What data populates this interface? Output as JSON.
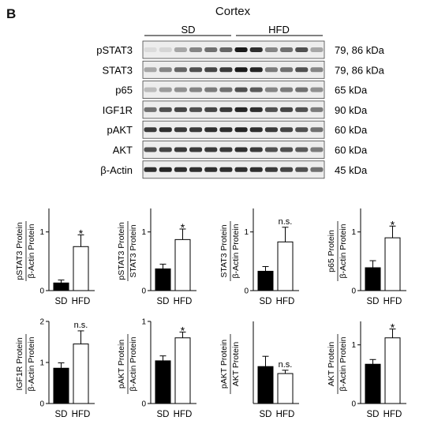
{
  "panel_label": "B",
  "blot": {
    "title": "Cortex",
    "groups": [
      "SD",
      "HFD"
    ],
    "lanes_per_group": 6,
    "rows": [
      {
        "label": "pSTAT3",
        "size": "79, 86 kDa",
        "sd": [
          0.05,
          0.08,
          0.3,
          0.45,
          0.55,
          0.6
        ],
        "hfd": [
          0.95,
          0.85,
          0.45,
          0.55,
          0.7,
          0.3
        ]
      },
      {
        "label": "STAT3",
        "size": "79, 86 kDa",
        "sd": [
          0.3,
          0.45,
          0.6,
          0.7,
          0.75,
          0.8
        ],
        "hfd": [
          0.95,
          0.9,
          0.5,
          0.55,
          0.7,
          0.45
        ]
      },
      {
        "label": "p65",
        "size": "65 kDa",
        "sd": [
          0.2,
          0.35,
          0.4,
          0.45,
          0.5,
          0.55
        ],
        "hfd": [
          0.7,
          0.65,
          0.45,
          0.5,
          0.55,
          0.4
        ]
      },
      {
        "label": "IGF1R",
        "size": "90 kDa",
        "sd": [
          0.55,
          0.7,
          0.75,
          0.7,
          0.75,
          0.8
        ],
        "hfd": [
          0.9,
          0.85,
          0.7,
          0.75,
          0.7,
          0.5
        ]
      },
      {
        "label": "pAKT",
        "size": "60 kDa",
        "sd": [
          0.8,
          0.85,
          0.8,
          0.8,
          0.85,
          0.85
        ],
        "hfd": [
          0.9,
          0.85,
          0.8,
          0.75,
          0.7,
          0.55
        ]
      },
      {
        "label": "AKT",
        "size": "60 kDa",
        "sd": [
          0.7,
          0.75,
          0.8,
          0.8,
          0.8,
          0.8
        ],
        "hfd": [
          0.85,
          0.8,
          0.7,
          0.7,
          0.65,
          0.5
        ]
      },
      {
        "label": "β-Actin",
        "size": "45 kDa",
        "sd": [
          0.85,
          0.9,
          0.85,
          0.85,
          0.85,
          0.85
        ],
        "hfd": [
          0.85,
          0.85,
          0.8,
          0.75,
          0.7,
          0.55
        ]
      }
    ]
  },
  "chart_data": [
    {
      "type": "bar",
      "categories": [
        "SD",
        "HFD"
      ],
      "values": [
        0.13,
        0.75
      ],
      "errors": [
        0.05,
        0.2
      ],
      "ylim": [
        0,
        1.4
      ],
      "yticks": [
        0,
        1
      ],
      "ylabel_top": "pSTAT3 Protein",
      "ylabel_bottom": "β-Actin Protein",
      "annotation": "*",
      "colors": [
        "#000000",
        "#ffffff"
      ]
    },
    {
      "type": "bar",
      "categories": [
        "SD",
        "HFD"
      ],
      "values": [
        0.37,
        0.87
      ],
      "errors": [
        0.08,
        0.18
      ],
      "ylim": [
        0,
        1.4
      ],
      "yticks": [
        0,
        1
      ],
      "ylabel_top": "pSTAT3 Protein",
      "ylabel_bottom": "STAT3 Protein",
      "annotation": "*",
      "colors": [
        "#000000",
        "#ffffff"
      ]
    },
    {
      "type": "bar",
      "categories": [
        "SD",
        "HFD"
      ],
      "values": [
        0.33,
        0.83
      ],
      "errors": [
        0.08,
        0.25
      ],
      "ylim": [
        0,
        1.4
      ],
      "yticks": [
        0,
        1
      ],
      "ylabel_top": "STAT3 Protein",
      "ylabel_bottom": "β-Actin Protein",
      "annotation": "n.s.",
      "colors": [
        "#000000",
        "#ffffff"
      ]
    },
    {
      "type": "bar",
      "categories": [
        "SD",
        "HFD"
      ],
      "values": [
        0.39,
        0.9
      ],
      "errors": [
        0.12,
        0.2
      ],
      "ylim": [
        0,
        1.4
      ],
      "yticks": [
        0,
        1
      ],
      "ylabel_top": "p65 Protein",
      "ylabel_bottom": "β-Actin Protein",
      "annotation": "*",
      "colors": [
        "#000000",
        "#ffffff"
      ]
    },
    {
      "type": "bar",
      "categories": [
        "SD",
        "HFD"
      ],
      "values": [
        0.86,
        1.45
      ],
      "errors": [
        0.13,
        0.32
      ],
      "ylim": [
        0,
        2
      ],
      "yticks": [
        0,
        1,
        2
      ],
      "ylabel_top": "IGF1R Protein",
      "ylabel_bottom": "β-Actin Protein",
      "annotation": "n.s.",
      "colors": [
        "#000000",
        "#ffffff"
      ]
    },
    {
      "type": "bar",
      "categories": [
        "SD",
        "HFD"
      ],
      "values": [
        0.52,
        0.8
      ],
      "errors": [
        0.06,
        0.07
      ],
      "ylim": [
        0,
        1
      ],
      "yticks": [
        0,
        1
      ],
      "ylabel_top": "pAKT Protein",
      "ylabel_bottom": "β-Actin Protein",
      "annotation": "*",
      "colors": [
        "#000000",
        "#ffffff"
      ]
    },
    {
      "type": "bar",
      "categories": [
        "SD",
        "HFD"
      ],
      "values": [
        0.9,
        0.73
      ],
      "errors": [
        0.25,
        0.08
      ],
      "ylim": [
        0,
        2
      ],
      "yticks": [],
      "ylabel_top": "pAKT Protein",
      "ylabel_bottom": "AKT Protein",
      "annotation": "n.s.",
      "colors": [
        "#000000",
        "#ffffff"
      ]
    },
    {
      "type": "bar",
      "categories": [
        "SD",
        "HFD"
      ],
      "values": [
        0.67,
        1.12
      ],
      "errors": [
        0.08,
        0.15
      ],
      "ylim": [
        0,
        1.4
      ],
      "yticks": [
        0,
        1
      ],
      "ylabel_top": "AKT Protein",
      "ylabel_bottom": "β-Actin Protein",
      "annotation": "*",
      "colors": [
        "#000000",
        "#ffffff"
      ]
    }
  ]
}
